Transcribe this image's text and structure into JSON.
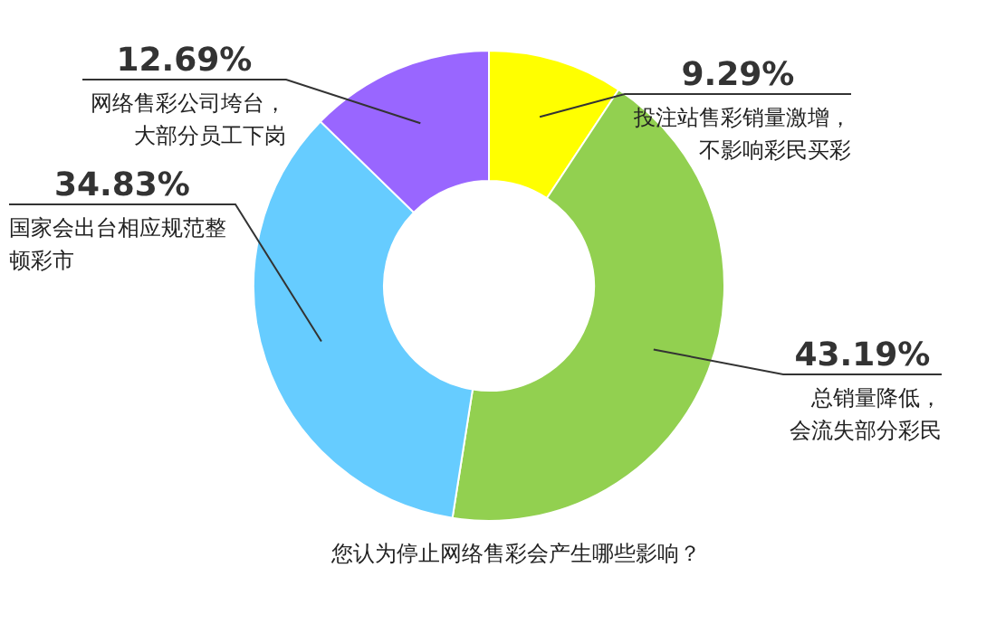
{
  "chart_data": {
    "type": "donut",
    "title": "您认为停止网络售彩会产生哪些影响？",
    "categories": [
      "投注站售彩销量激增，不影响彩民买彩",
      "总销量降低，会流失部分彩民",
      "国家会出台相应规范整顿彩市",
      "网络售彩公司垮台，大部分员工下岗"
    ],
    "values": [
      9.29,
      43.19,
      34.83,
      12.69
    ],
    "value_labels": [
      "9.29%",
      "43.19%",
      "34.83%",
      "12.69%"
    ],
    "colors": [
      "#ffff00",
      "#92d050",
      "#66ccff",
      "#9966ff"
    ],
    "legend": false
  }
}
